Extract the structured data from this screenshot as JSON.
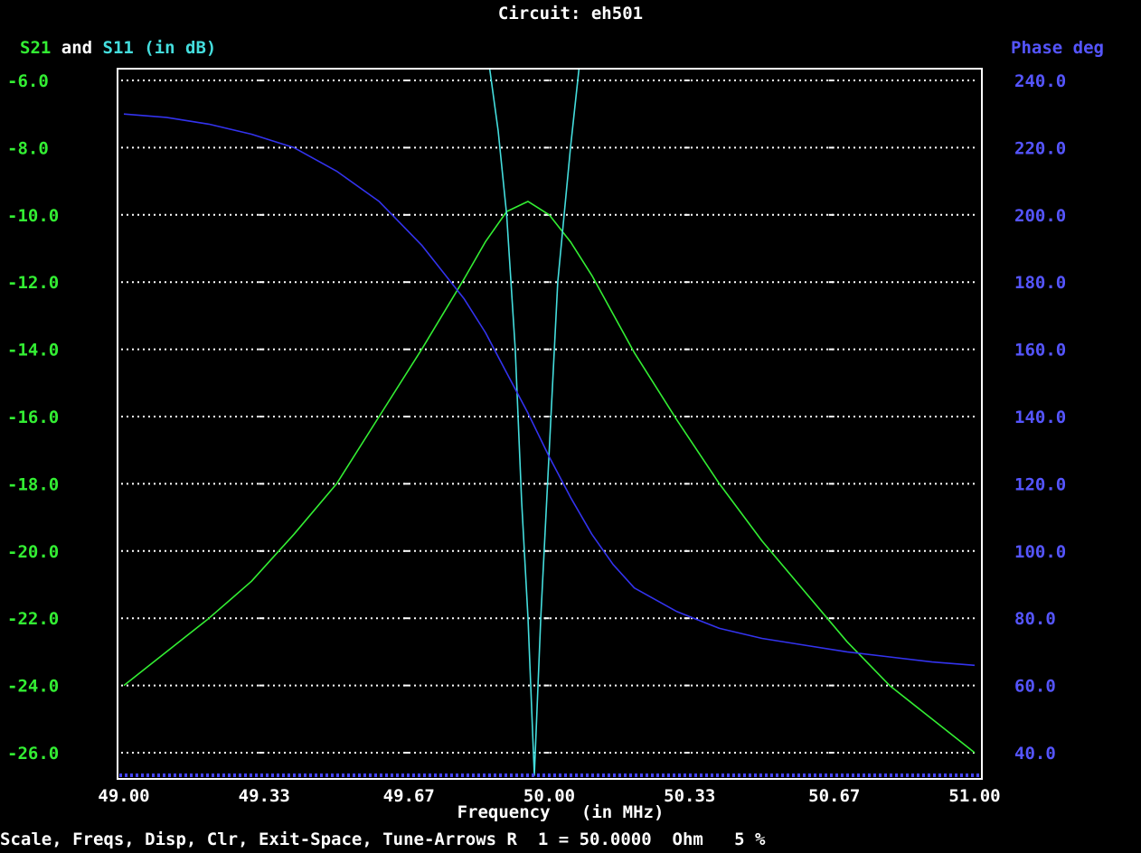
{
  "chart_data": {
    "type": "line",
    "title": "Circuit: eh501",
    "left_axis_title_parts": [
      "S21",
      " and ",
      "S11",
      " (in dB)"
    ],
    "right_axis_title": "Phase deg",
    "xlabel_line1": "Frequency   (in MHz)",
    "x_ticks": [
      "49.00",
      "49.33",
      "49.67",
      "50.00",
      "50.33",
      "50.67",
      "51.00"
    ],
    "xlim": [
      49.0,
      51.0
    ],
    "y_left_ticks": [
      "-6.0",
      "-8.0",
      "-10.0",
      "-12.0",
      "-14.0",
      "-16.0",
      "-18.0",
      "-20.0",
      "-22.0",
      "-24.0",
      "-26.0"
    ],
    "ylim_left": [
      -26.7,
      -5.6
    ],
    "y_right_ticks": [
      "240.0",
      "220.0",
      "200.0",
      "180.0",
      "160.0",
      "140.0",
      "120.0",
      "100.0",
      "80.0",
      "60.0",
      "40.0"
    ],
    "ylim_right": [
      33,
      243
    ],
    "grid": true,
    "series": [
      {
        "name": "S21",
        "axis": "left",
        "color": "#33ee33",
        "x": [
          49.0,
          49.1,
          49.2,
          49.3,
          49.4,
          49.5,
          49.6,
          49.7,
          49.8,
          49.85,
          49.9,
          49.95,
          50.0,
          50.05,
          50.1,
          50.2,
          50.3,
          50.4,
          50.5,
          50.6,
          50.7,
          50.8,
          50.9,
          51.0
        ],
        "values": [
          -24.0,
          -23.0,
          -22.0,
          -20.9,
          -19.5,
          -18.0,
          -16.0,
          -14.0,
          -11.9,
          -10.8,
          -9.9,
          -9.6,
          -10.0,
          -10.8,
          -11.8,
          -14.1,
          -16.1,
          -18.0,
          -19.7,
          -21.2,
          -22.7,
          -24.0,
          -25.0,
          -26.0
        ]
      },
      {
        "name": "S11",
        "axis": "left",
        "color": "#44dddd",
        "x": [
          49.86,
          49.88,
          49.9,
          49.92,
          49.935,
          49.95,
          49.965,
          49.98,
          50.0,
          50.02,
          50.05,
          50.07
        ],
        "values": [
          -5.5,
          -7.5,
          -10.0,
          -14.0,
          -18.5,
          -22.0,
          -26.7,
          -22.0,
          -17.0,
          -12.0,
          -8.0,
          -5.5
        ]
      },
      {
        "name": "Phase",
        "axis": "right",
        "color": "#3333ee",
        "x": [
          49.0,
          49.1,
          49.2,
          49.3,
          49.4,
          49.5,
          49.6,
          49.7,
          49.8,
          49.85,
          49.9,
          49.95,
          50.0,
          50.05,
          50.1,
          50.15,
          50.2,
          50.3,
          50.4,
          50.5,
          50.6,
          50.7,
          50.8,
          50.9,
          51.0
        ],
        "values": [
          230,
          229,
          227,
          224,
          220,
          213,
          204,
          191,
          175,
          165,
          153,
          141,
          128,
          116,
          105,
          96,
          89,
          82,
          77,
          74,
          72,
          70,
          68.5,
          67,
          66
        ]
      }
    ]
  },
  "status_bar": "Scale, Freqs, Disp, Clr, Exit-Space, Tune-Arrows R  1 = 50.0000  Ohm   5 %"
}
